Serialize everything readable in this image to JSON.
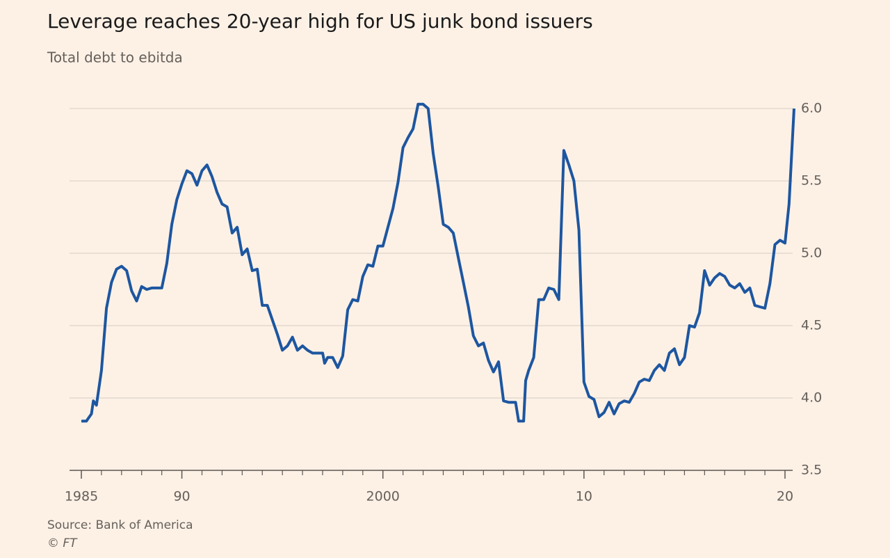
{
  "chart_data": {
    "type": "line",
    "title": "Leverage reaches 20-year high for US junk bond issuers",
    "subtitle": "Total debt to ebitda",
    "source": "Source: Bank of America",
    "credit": "© FT",
    "x": [
      1985.0,
      1985.25,
      1985.5,
      1985.6,
      1985.75,
      1986.0,
      1986.25,
      1986.5,
      1986.75,
      1987.0,
      1987.25,
      1987.5,
      1987.75,
      1988.0,
      1988.25,
      1988.5,
      1989.0,
      1989.25,
      1989.5,
      1989.75,
      1990.0,
      1990.25,
      1990.5,
      1990.75,
      1991.0,
      1991.25,
      1991.5,
      1991.75,
      1992.0,
      1992.25,
      1992.5,
      1992.75,
      1993.0,
      1993.25,
      1993.5,
      1993.75,
      1994.0,
      1994.25,
      1994.5,
      1994.75,
      1995.0,
      1995.25,
      1995.5,
      1995.75,
      1996.0,
      1996.25,
      1996.5,
      1997.0,
      1997.1,
      1997.25,
      1997.5,
      1997.75,
      1998.0,
      1998.25,
      1998.5,
      1998.75,
      1999.0,
      1999.25,
      1999.5,
      1999.75,
      2000.0,
      2000.25,
      2000.5,
      2000.75,
      2001.0,
      2001.25,
      2001.5,
      2001.75,
      2002.0,
      2002.25,
      2002.5,
      2002.75,
      2003.0,
      2003.25,
      2003.5,
      2003.75,
      2004.0,
      2004.25,
      2004.5,
      2004.75,
      2005.0,
      2005.25,
      2005.5,
      2005.75,
      2006.0,
      2006.25,
      2006.6,
      2006.75,
      2007.0,
      2007.1,
      2007.25,
      2007.5,
      2007.75,
      2008.0,
      2008.25,
      2008.5,
      2008.75,
      2009.0,
      2009.25,
      2009.5,
      2009.75,
      2010.0,
      2010.25,
      2010.5,
      2010.75,
      2011.0,
      2011.25,
      2011.5,
      2011.75,
      2012.0,
      2012.25,
      2012.5,
      2012.75,
      2013.0,
      2013.25,
      2013.5,
      2013.75,
      2014.0,
      2014.25,
      2014.5,
      2014.75,
      2015.0,
      2015.25,
      2015.5,
      2015.75,
      2016.0,
      2016.25,
      2016.5,
      2016.75,
      2017.0,
      2017.25,
      2017.5,
      2017.75,
      2018.0,
      2018.25,
      2018.5,
      2018.75,
      2019.0,
      2019.25,
      2019.5,
      2019.75,
      2020.0,
      2020.2,
      2020.45
    ],
    "series": [
      {
        "name": "Total debt to ebitda",
        "color": "#1d56a0",
        "values": [
          3.84,
          3.84,
          3.89,
          3.98,
          3.95,
          4.19,
          4.62,
          4.8,
          4.89,
          4.91,
          4.88,
          4.74,
          4.67,
          4.77,
          4.75,
          4.76,
          4.76,
          4.93,
          5.2,
          5.37,
          5.48,
          5.57,
          5.55,
          5.47,
          5.57,
          5.61,
          5.53,
          5.42,
          5.34,
          5.32,
          5.14,
          5.18,
          4.99,
          5.03,
          4.88,
          4.89,
          4.64,
          4.64,
          4.54,
          4.44,
          4.33,
          4.36,
          4.42,
          4.33,
          4.36,
          4.33,
          4.31,
          4.31,
          4.24,
          4.28,
          4.28,
          4.21,
          4.29,
          4.61,
          4.68,
          4.67,
          4.84,
          4.92,
          4.91,
          5.05,
          5.05,
          5.18,
          5.31,
          5.49,
          5.73,
          5.8,
          5.86,
          6.03,
          6.03,
          6.0,
          5.69,
          5.46,
          5.2,
          5.18,
          5.14,
          4.97,
          4.8,
          4.63,
          4.43,
          4.36,
          4.38,
          4.26,
          4.18,
          4.25,
          3.98,
          3.97,
          3.97,
          3.84,
          3.84,
          4.12,
          4.19,
          4.28,
          4.68,
          4.68,
          4.76,
          4.75,
          4.68,
          5.71,
          5.61,
          5.5,
          5.16,
          4.11,
          4.01,
          3.99,
          3.87,
          3.9,
          3.97,
          3.89,
          3.96,
          3.98,
          3.97,
          4.03,
          4.11,
          4.13,
          4.12,
          4.19,
          4.23,
          4.19,
          4.31,
          4.34,
          4.23,
          4.28,
          4.5,
          4.49,
          4.59,
          4.88,
          4.78,
          4.83,
          4.86,
          4.84,
          4.78,
          4.76,
          4.79,
          4.73,
          4.76,
          4.64,
          4.63,
          4.62,
          4.79,
          5.06,
          5.09,
          5.07,
          5.34,
          6.0
        ]
      }
    ],
    "xlim": [
      1985,
      2020.45
    ],
    "ylim": [
      3.5,
      6.0
    ],
    "yticks": [
      3.5,
      {
        "value": 4,
        "label": "4.0"
      },
      4.5,
      {
        "value": 5,
        "label": "5.0"
      },
      5.5,
      {
        "value": 6,
        "label": "6.0"
      }
    ],
    "xticks": [
      1985,
      {
        "value": 1990,
        "label": "90"
      },
      {
        "value": 2000,
        "label": "2000"
      },
      {
        "value": 2010,
        "label": "10"
      },
      {
        "value": 2020,
        "label": "20"
      }
    ],
    "xticks_minor": [
      1986,
      1987,
      1988,
      1989,
      1991,
      1992,
      1993,
      1994,
      1995,
      1996,
      1997,
      1998,
      1999,
      2001,
      2002,
      2003,
      2004,
      2005,
      2006,
      2007,
      2008,
      2009,
      2011,
      2012,
      2013,
      2014,
      2015,
      2016,
      2017,
      2018,
      2019
    ],
    "grid": true
  }
}
